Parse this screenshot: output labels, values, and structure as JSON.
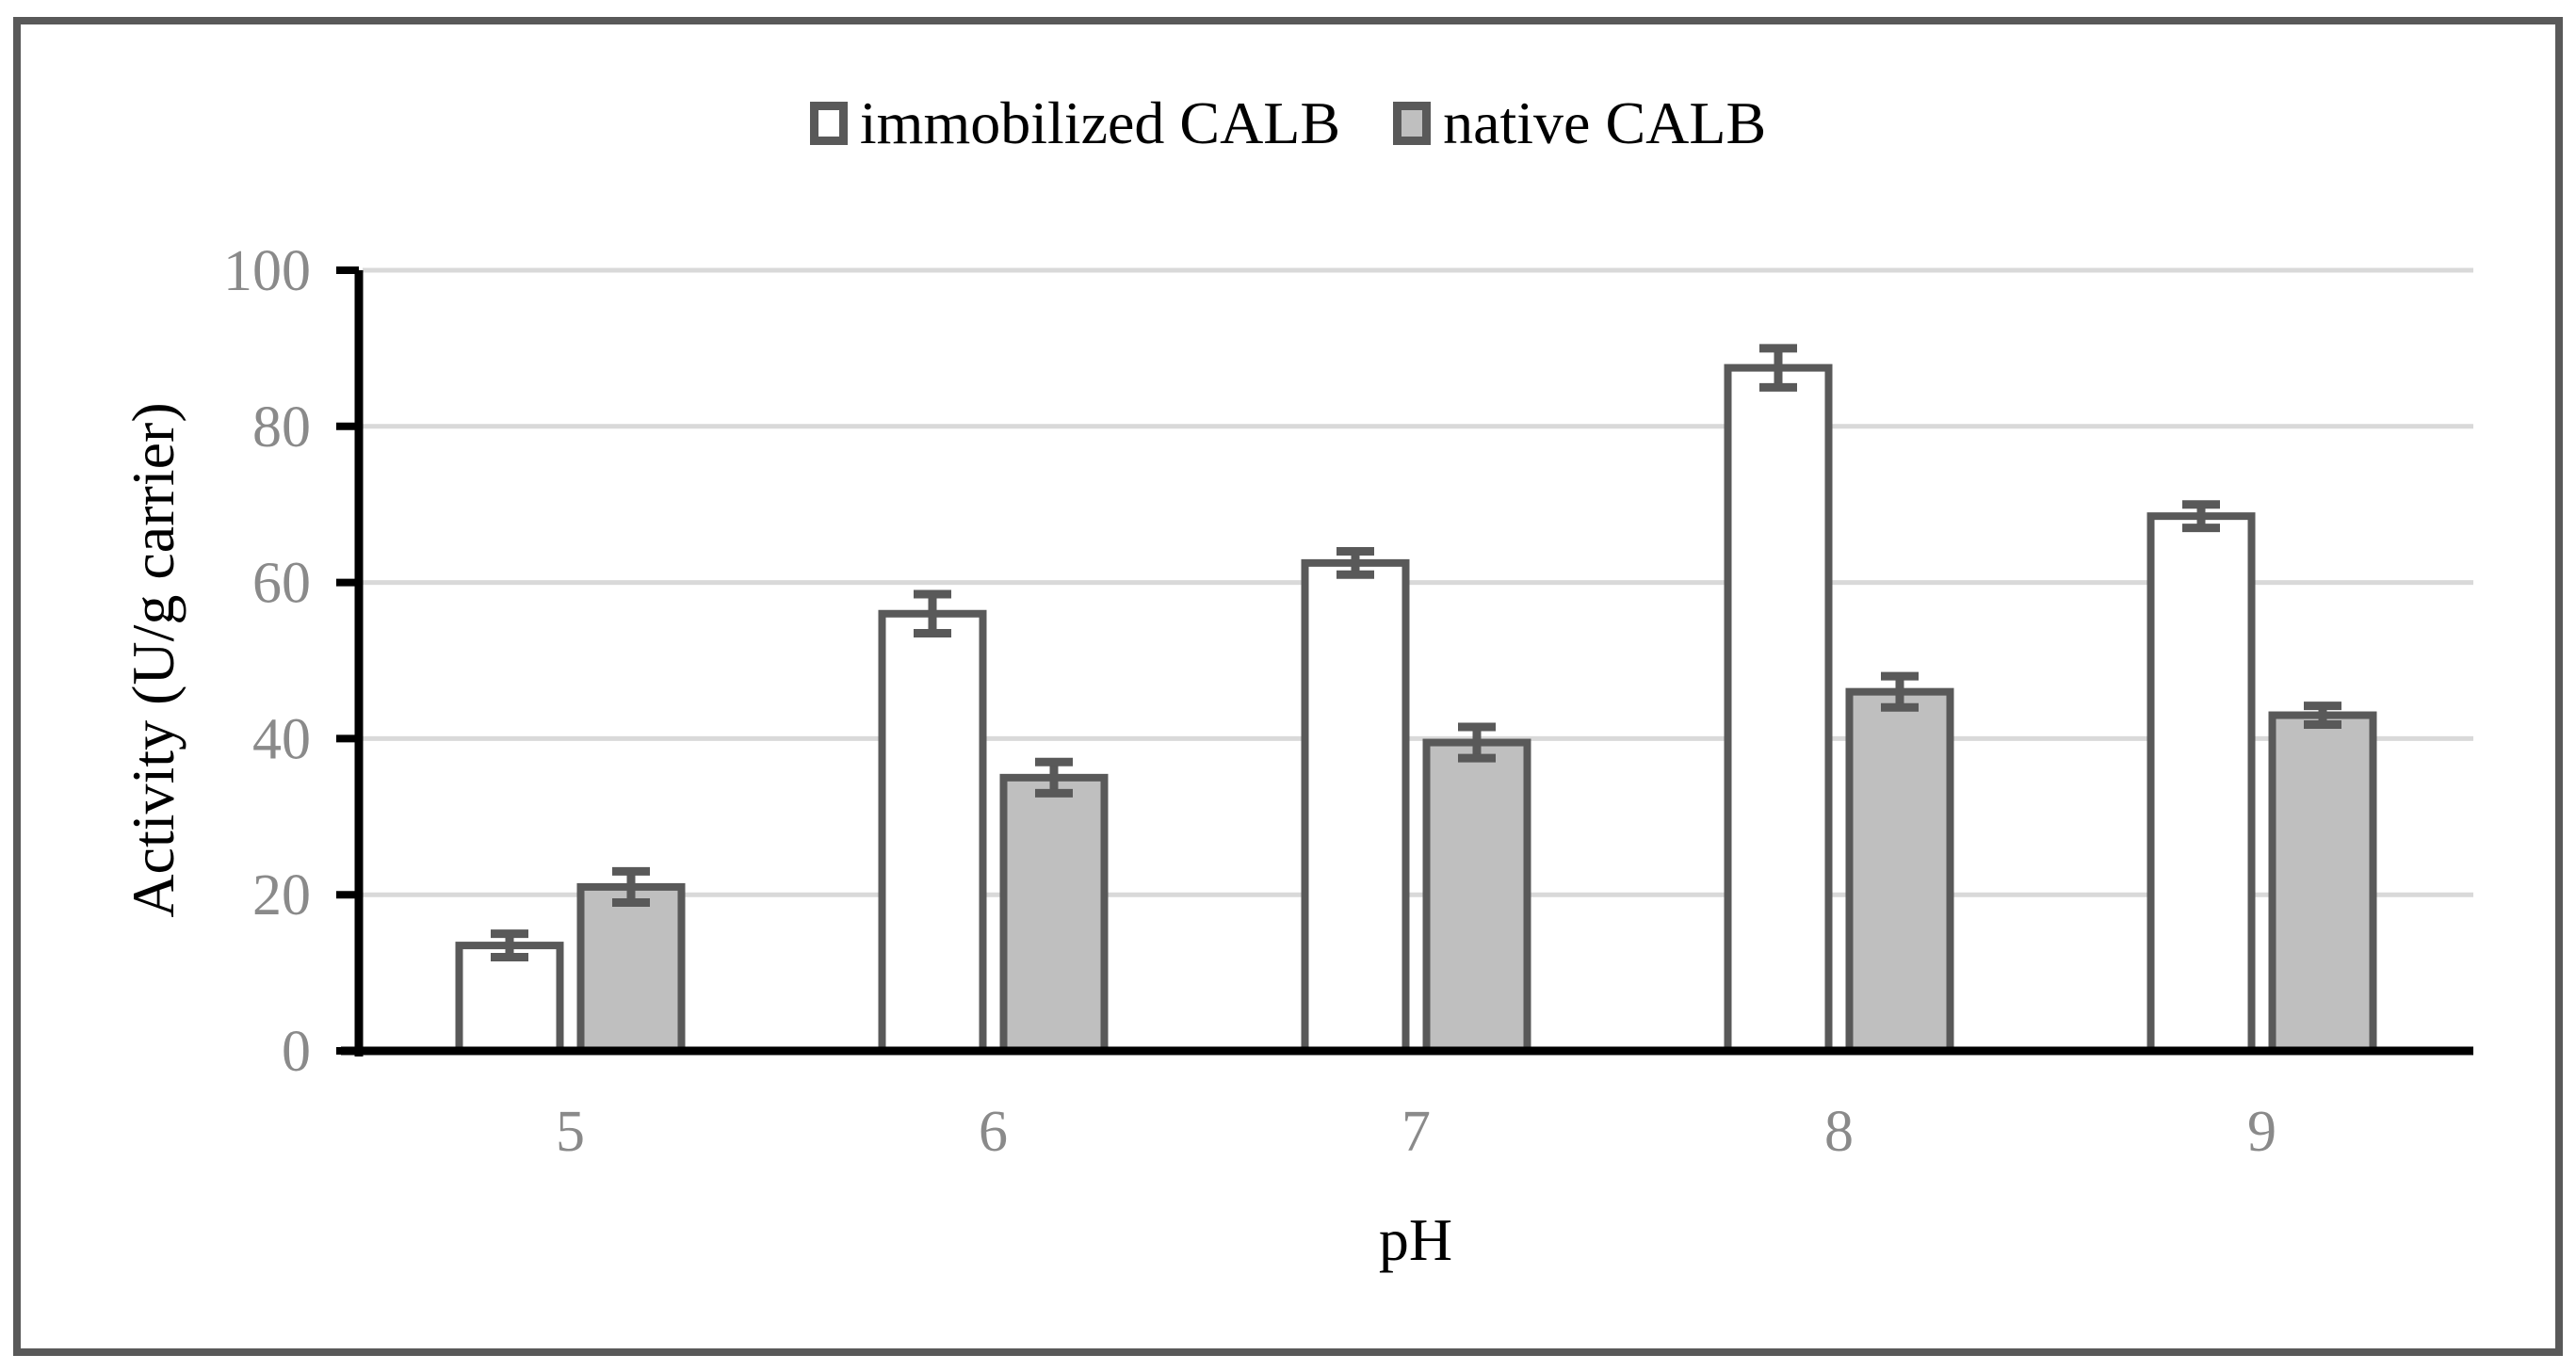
{
  "chart_data": {
    "type": "bar",
    "title": "",
    "xlabel": "pH",
    "ylabel": "Activity (U/g carrier)",
    "categories": [
      "5",
      "6",
      "7",
      "8",
      "9"
    ],
    "series": [
      {
        "name": "immobilized CALB",
        "fill": "#FFFFFF",
        "values": [
          13.5,
          56,
          62.5,
          87.5,
          68.5
        ],
        "errors": [
          1.5,
          2.5,
          1.5,
          2.5,
          1.5
        ]
      },
      {
        "name": "native CALB",
        "fill": "#BFBFBF",
        "values": [
          21,
          35,
          39.5,
          46,
          43
        ],
        "errors": [
          2,
          2,
          2,
          2,
          1.2
        ]
      }
    ],
    "ylim": [
      0,
      100
    ],
    "yticks": [
      0,
      20,
      40,
      60,
      80,
      100
    ],
    "grid": true,
    "legend_position": "top",
    "error_bars": true
  },
  "colors": {
    "bar_outline": "#595959",
    "error_bar": "#595959",
    "gridline": "#D9D9D9",
    "axis_line": "#000000",
    "tick_label": "#8A8A8A",
    "frame_border": "#595959",
    "background": "#FFFFFF"
  }
}
